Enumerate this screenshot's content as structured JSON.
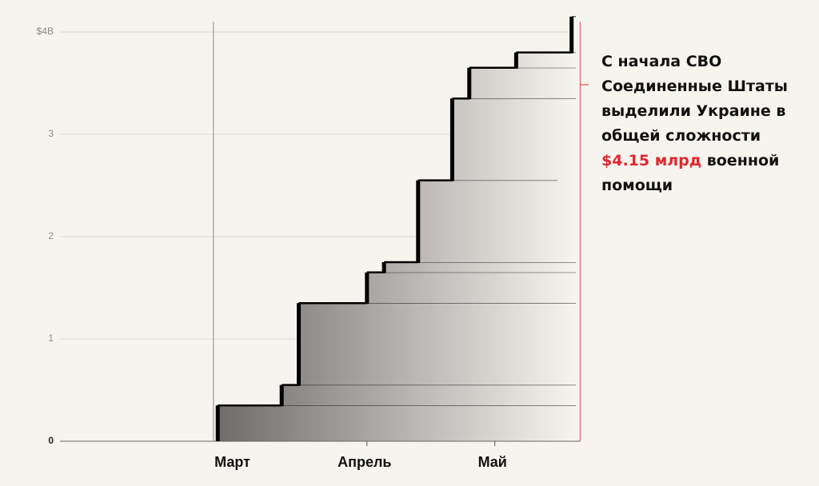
{
  "chart_data": {
    "type": "step",
    "x": [
      56,
      71,
      75,
      91,
      95,
      103,
      111,
      115,
      126,
      139
    ],
    "values": [
      0.35,
      0.2,
      0.8,
      0.3,
      0.1,
      0.8,
      0.8,
      0.3,
      0.15,
      0.35
    ],
    "color": "#000000",
    "xlim": [
      19,
      140
    ],
    "xticks": [
      {
        "value": 60,
        "label": "Март"
      },
      {
        "value": 91,
        "label": "Апрель"
      },
      {
        "value": 121,
        "label": "Май"
      }
    ],
    "ylim": [
      0,
      4.1
    ],
    "yticks": [
      0,
      1,
      2,
      3,
      {
        "value": 4,
        "label": "$4B"
      }
    ],
    "grid": true,
    "start_line_x": 55,
    "total_line_x": 141,
    "annotation": {
      "before": "С начала СВО Соединенные Штаты выделили Украине в общей сложности",
      "highlight": "$4.15 млрд",
      "after": "военной помощи"
    }
  }
}
